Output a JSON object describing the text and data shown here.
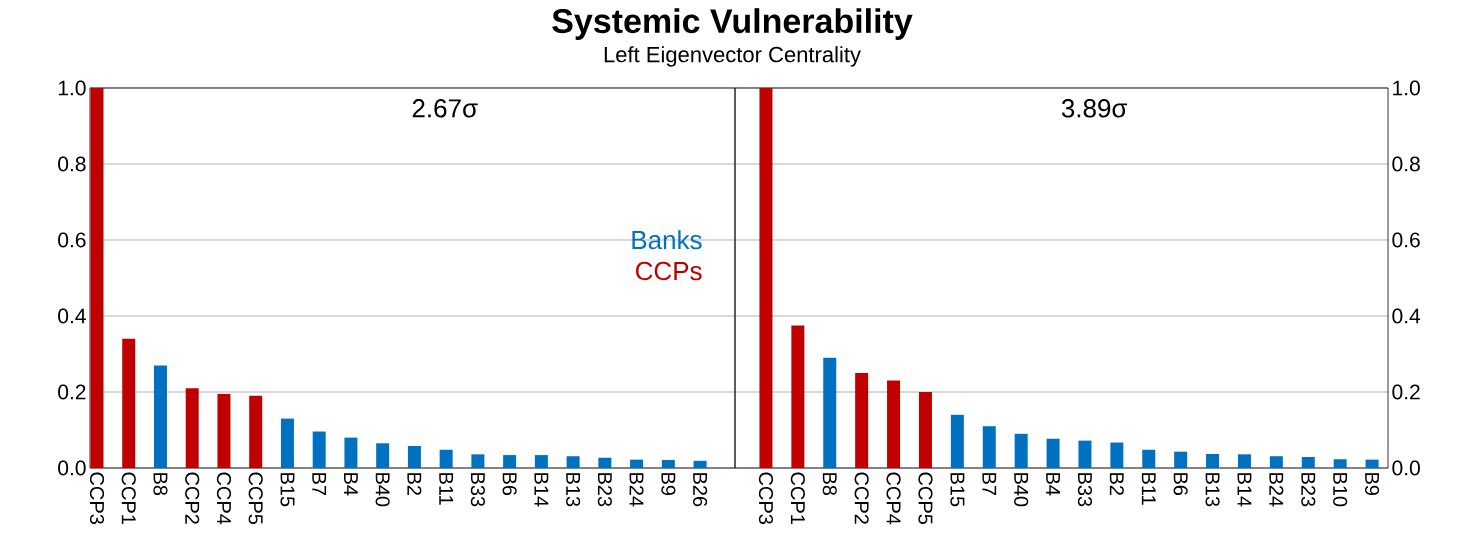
{
  "chart_data": [
    {
      "type": "bar",
      "title": "Systemic Vulnerability",
      "subtitle": "Left Eigenvector Centrality",
      "categories": [
        "CCP3",
        "CCP1",
        "B8",
        "CCP2",
        "CCP4",
        "CCP5",
        "B15",
        "B7",
        "B4",
        "B40",
        "B2",
        "B11",
        "B33",
        "B6",
        "B14",
        "B13",
        "B23",
        "B24",
        "B9",
        "B26"
      ],
      "series": [
        {
          "name": "Banks",
          "color": "#0070c0",
          "values": [
            null,
            null,
            0.27,
            null,
            null,
            null,
            0.13,
            0.096,
            0.08,
            0.065,
            0.058,
            0.048,
            0.036,
            0.034,
            0.034,
            0.031,
            0.027,
            0.022,
            0.021,
            0.019
          ]
        },
        {
          "name": "CCPs",
          "color": "#c00000",
          "values": [
            1.0,
            0.34,
            null,
            0.21,
            0.195,
            0.19,
            null,
            null,
            null,
            null,
            null,
            null,
            null,
            null,
            null,
            null,
            null,
            null,
            null,
            null
          ]
        }
      ],
      "ylim": [
        0,
        1
      ],
      "yticks": [
        {
          "value": 0,
          "label": "0.0"
        },
        {
          "value": 0.2,
          "label": "0.2"
        },
        {
          "value": 0.4,
          "label": "0.4"
        },
        {
          "value": 0.6,
          "label": "0.6"
        },
        {
          "value": 0.8,
          "label": "0.8"
        },
        {
          "value": 1,
          "label": "1.0"
        }
      ],
      "grid": "y",
      "legend": "right",
      "annotations": [
        "2.67σ"
      ]
    },
    {
      "type": "bar",
      "categories": [
        "CCP3",
        "CCP1",
        "B8",
        "CCP2",
        "CCP4",
        "CCP5",
        "B15",
        "B7",
        "B40",
        "B4",
        "B33",
        "B2",
        "B11",
        "B6",
        "B13",
        "B14",
        "B24",
        "B23",
        "B10",
        "B9"
      ],
      "series": [
        {
          "color": "#0070c0",
          "axis": "y2",
          "values": [
            null,
            null,
            0.29,
            null,
            null,
            null,
            0.14,
            0.11,
            0.09,
            0.077,
            0.072,
            0.067,
            0.048,
            0.043,
            0.037,
            0.036,
            0.031,
            0.029,
            0.023,
            0.022
          ]
        },
        {
          "color": "#c00000",
          "axis": "y2",
          "values": [
            1.0,
            0.375,
            null,
            0.25,
            0.23,
            0.2,
            null,
            null,
            null,
            null,
            null,
            null,
            null,
            null,
            null,
            null,
            null,
            null,
            null,
            null
          ]
        }
      ],
      "y2lim": [
        0,
        1
      ],
      "y2ticks": [
        {
          "value": 0,
          "label": "0.0"
        },
        {
          "value": 0.2,
          "label": "0.2"
        },
        {
          "value": 0.4,
          "label": "0.4"
        },
        {
          "value": 0.6,
          "label": "0.6"
        },
        {
          "value": 0.8,
          "label": "0.8"
        },
        {
          "value": 1,
          "label": "1.0"
        }
      ],
      "grid": "y",
      "annotations": [
        "3.89σ"
      ]
    }
  ]
}
